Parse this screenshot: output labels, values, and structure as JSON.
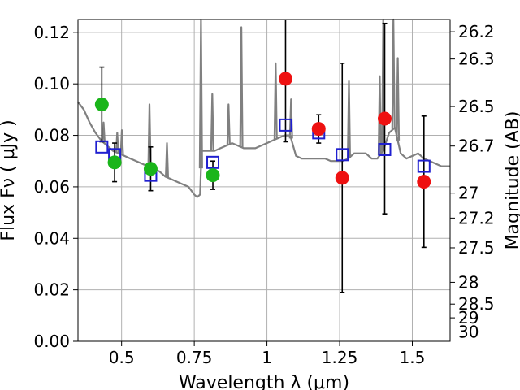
{
  "chart_data": {
    "type": "scatter",
    "title": "",
    "xlabel": "Wavelength  λ (μm)",
    "ylabel": "Flux  Fν  ( μJy )",
    "y2label": "Magnitude (AB)",
    "xlim": [
      0.35,
      1.63
    ],
    "ylim": [
      0.0,
      0.125
    ],
    "grid": true,
    "x_ticks": [
      0.5,
      0.75,
      1.0,
      1.25,
      1.5
    ],
    "x_tick_labels": [
      "0.5",
      "0.75",
      "1",
      "1.25",
      "1.5"
    ],
    "y_ticks": [
      0.0,
      0.02,
      0.04,
      0.06,
      0.08,
      0.1,
      0.12
    ],
    "y_tick_labels": [
      "0.00",
      "0.02",
      "0.04",
      "0.06",
      "0.08",
      "0.10",
      "0.12"
    ],
    "y2_ticks": [
      "26.2",
      "26.3",
      "26.5",
      "26.7",
      "27",
      "27.2",
      "27.5",
      "28",
      "28.5",
      "29",
      "30"
    ],
    "colors": {
      "spectrum": "#808080",
      "model_points": "#1f1fd0",
      "green_points": "#1ab51a",
      "red_points": "#ee1111",
      "errorbars": "#000000",
      "grid": "#b0b0b0"
    },
    "spectrum": {
      "name": "",
      "x": [
        0.35,
        0.37,
        0.39,
        0.41,
        0.43,
        0.45,
        0.47,
        0.49,
        0.51,
        0.53,
        0.55,
        0.57,
        0.59,
        0.61,
        0.63,
        0.65,
        0.67,
        0.69,
        0.71,
        0.73,
        0.75,
        0.76,
        0.77,
        0.775,
        0.78,
        0.79,
        0.8,
        0.82,
        0.84,
        0.86,
        0.88,
        0.9,
        0.92,
        0.94,
        0.96,
        0.98,
        1.0,
        1.02,
        1.04,
        1.06,
        1.08,
        1.1,
        1.12,
        1.14,
        1.16,
        1.18,
        1.2,
        1.22,
        1.24,
        1.26,
        1.28,
        1.3,
        1.32,
        1.34,
        1.36,
        1.38,
        1.4,
        1.42,
        1.44,
        1.46,
        1.48,
        1.5,
        1.52,
        1.54,
        1.56,
        1.58,
        1.6,
        1.63
      ],
      "y": [
        0.093,
        0.09,
        0.085,
        0.081,
        0.078,
        0.076,
        0.074,
        0.073,
        0.072,
        0.071,
        0.07,
        0.069,
        0.068,
        0.067,
        0.066,
        0.064,
        0.063,
        0.062,
        0.061,
        0.06,
        0.057,
        0.056,
        0.057,
        0.074,
        0.074,
        0.074,
        0.074,
        0.074,
        0.075,
        0.076,
        0.077,
        0.076,
        0.075,
        0.075,
        0.075,
        0.076,
        0.077,
        0.078,
        0.079,
        0.08,
        0.08,
        0.072,
        0.071,
        0.071,
        0.071,
        0.071,
        0.071,
        0.07,
        0.07,
        0.07,
        0.071,
        0.073,
        0.073,
        0.073,
        0.071,
        0.071,
        0.074,
        0.081,
        0.083,
        0.073,
        0.071,
        0.072,
        0.073,
        0.071,
        0.07,
        0.069,
        0.068,
        0.068
      ]
    },
    "spectrum_emission_lines": [
      {
        "x": 0.438,
        "peak": 0.085
      },
      {
        "x": 0.485,
        "peak": 0.081
      },
      {
        "x": 0.501,
        "peak": 0.082
      },
      {
        "x": 0.596,
        "peak": 0.092
      },
      {
        "x": 0.656,
        "peak": 0.077
      },
      {
        "x": 0.773,
        "peak": 0.125
      },
      {
        "x": 0.812,
        "peak": 0.096
      },
      {
        "x": 0.868,
        "peak": 0.092
      },
      {
        "x": 0.912,
        "peak": 0.122
      },
      {
        "x": 1.03,
        "peak": 0.108
      },
      {
        "x": 1.083,
        "peak": 0.094
      },
      {
        "x": 1.282,
        "peak": 0.101
      },
      {
        "x": 1.388,
        "peak": 0.103
      },
      {
        "x": 1.4,
        "peak": 0.125
      },
      {
        "x": 1.435,
        "peak": 0.125
      },
      {
        "x": 1.45,
        "peak": 0.11
      }
    ],
    "series": [
      {
        "name": "",
        "marker": "open-square",
        "x": [
          0.432,
          0.476,
          0.6,
          0.814,
          1.064,
          1.178,
          1.259,
          1.405,
          1.54
        ],
        "y": [
          0.0755,
          0.0725,
          0.0645,
          0.0695,
          0.084,
          0.081,
          0.0725,
          0.0745,
          0.068
        ]
      },
      {
        "name": "",
        "marker": "filled-circle",
        "color": "#1ab51a",
        "x": [
          0.432,
          0.476,
          0.6,
          0.814
        ],
        "y": [
          0.092,
          0.0695,
          0.067,
          0.0645
        ],
        "yerr": [
          0.0145,
          0.0075,
          0.0085,
          0.0055
        ]
      },
      {
        "name": "",
        "marker": "filled-circle",
        "color": "#ee1111",
        "x": [
          1.064,
          1.178,
          1.259,
          1.405,
          1.54
        ],
        "y": [
          0.102,
          0.0825,
          0.0635,
          0.0865,
          0.062
        ],
        "yerr": [
          0.0245,
          0.0055,
          0.0445,
          0.037,
          0.0255
        ]
      }
    ]
  }
}
